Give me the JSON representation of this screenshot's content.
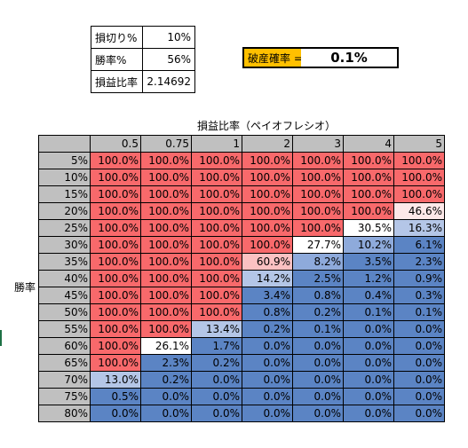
{
  "params": [
    {
      "label": "損切り%",
      "value": "10%"
    },
    {
      "label": "勝率%",
      "value": "56%"
    },
    {
      "label": "損益比率",
      "value": "2.14692"
    }
  ],
  "ruin": {
    "label": "破産確率 =",
    "value": "0.1%"
  },
  "chart_title": "損益比率（ペイオフレシオ）",
  "row_axis_label": "勝率",
  "columns": [
    "0.5",
    "0.75",
    "1",
    "2",
    "3",
    "4",
    "5"
  ],
  "rows": [
    {
      "label": "5%",
      "cells": [
        "100.0%",
        "100.0%",
        "100.0%",
        "100.0%",
        "100.0%",
        "100.0%",
        "100.0%"
      ],
      "tones": [
        "red",
        "red",
        "red",
        "red",
        "red",
        "red",
        "red"
      ]
    },
    {
      "label": "10%",
      "cells": [
        "100.0%",
        "100.0%",
        "100.0%",
        "100.0%",
        "100.0%",
        "100.0%",
        "100.0%"
      ],
      "tones": [
        "red",
        "red",
        "red",
        "red",
        "red",
        "red",
        "red"
      ]
    },
    {
      "label": "15%",
      "cells": [
        "100.0%",
        "100.0%",
        "100.0%",
        "100.0%",
        "100.0%",
        "100.0%",
        "100.0%"
      ],
      "tones": [
        "red",
        "red",
        "red",
        "red",
        "red",
        "red",
        "red"
      ]
    },
    {
      "label": "20%",
      "cells": [
        "100.0%",
        "100.0%",
        "100.0%",
        "100.0%",
        "100.0%",
        "100.0%",
        "46.6%"
      ],
      "tones": [
        "red",
        "red",
        "red",
        "red",
        "red",
        "red",
        "lpink"
      ]
    },
    {
      "label": "25%",
      "cells": [
        "100.0%",
        "100.0%",
        "100.0%",
        "100.0%",
        "100.0%",
        "30.5%",
        "16.3%"
      ],
      "tones": [
        "red",
        "red",
        "red",
        "red",
        "red",
        "white",
        "lblue"
      ]
    },
    {
      "label": "30%",
      "cells": [
        "100.0%",
        "100.0%",
        "100.0%",
        "100.0%",
        "27.7%",
        "10.2%",
        "6.1%"
      ],
      "tones": [
        "red",
        "red",
        "red",
        "red",
        "white",
        "mblue",
        "blue"
      ]
    },
    {
      "label": "35%",
      "cells": [
        "100.0%",
        "100.0%",
        "100.0%",
        "60.9%",
        "8.2%",
        "3.5%",
        "2.3%"
      ],
      "tones": [
        "red",
        "red",
        "red",
        "pink",
        "mblue",
        "blue",
        "blue"
      ]
    },
    {
      "label": "40%",
      "cells": [
        "100.0%",
        "100.0%",
        "100.0%",
        "14.2%",
        "2.5%",
        "1.2%",
        "0.9%"
      ],
      "tones": [
        "red",
        "red",
        "red",
        "lblue",
        "blue",
        "blue",
        "blue"
      ]
    },
    {
      "label": "45%",
      "cells": [
        "100.0%",
        "100.0%",
        "100.0%",
        "3.4%",
        "0.8%",
        "0.4%",
        "0.3%"
      ],
      "tones": [
        "red",
        "red",
        "red",
        "blue",
        "blue",
        "blue",
        "blue"
      ]
    },
    {
      "label": "50%",
      "cells": [
        "100.0%",
        "100.0%",
        "100.0%",
        "0.8%",
        "0.2%",
        "0.1%",
        "0.1%"
      ],
      "tones": [
        "red",
        "red",
        "red",
        "blue",
        "blue",
        "blue",
        "blue"
      ]
    },
    {
      "label": "55%",
      "cells": [
        "100.0%",
        "100.0%",
        "13.4%",
        "0.2%",
        "0.1%",
        "0.0%",
        "0.0%"
      ],
      "tones": [
        "red",
        "red",
        "lblue",
        "blue",
        "blue",
        "blue",
        "blue"
      ]
    },
    {
      "label": "60%",
      "cells": [
        "100.0%",
        "26.1%",
        "1.7%",
        "0.0%",
        "0.0%",
        "0.0%",
        "0.0%"
      ],
      "tones": [
        "red",
        "white",
        "blue",
        "blue",
        "blue",
        "blue",
        "blue"
      ]
    },
    {
      "label": "65%",
      "cells": [
        "100.0%",
        "2.3%",
        "0.2%",
        "0.0%",
        "0.0%",
        "0.0%",
        "0.0%"
      ],
      "tones": [
        "red",
        "blue",
        "blue",
        "blue",
        "blue",
        "blue",
        "blue"
      ]
    },
    {
      "label": "70%",
      "cells": [
        "13.0%",
        "0.2%",
        "0.0%",
        "0.0%",
        "0.0%",
        "0.0%",
        "0.0%"
      ],
      "tones": [
        "lblue",
        "blue",
        "blue",
        "blue",
        "blue",
        "blue",
        "blue"
      ]
    },
    {
      "label": "75%",
      "cells": [
        "0.5%",
        "0.0%",
        "0.0%",
        "0.0%",
        "0.0%",
        "0.0%",
        "0.0%"
      ],
      "tones": [
        "blue",
        "blue",
        "blue",
        "blue",
        "blue",
        "blue",
        "blue"
      ]
    },
    {
      "label": "80%",
      "cells": [
        "0.0%",
        "0.0%",
        "0.0%",
        "0.0%",
        "0.0%",
        "0.0%",
        "0.0%"
      ],
      "tones": [
        "blue",
        "blue",
        "blue",
        "blue",
        "blue",
        "blue",
        "blue"
      ]
    }
  ]
}
